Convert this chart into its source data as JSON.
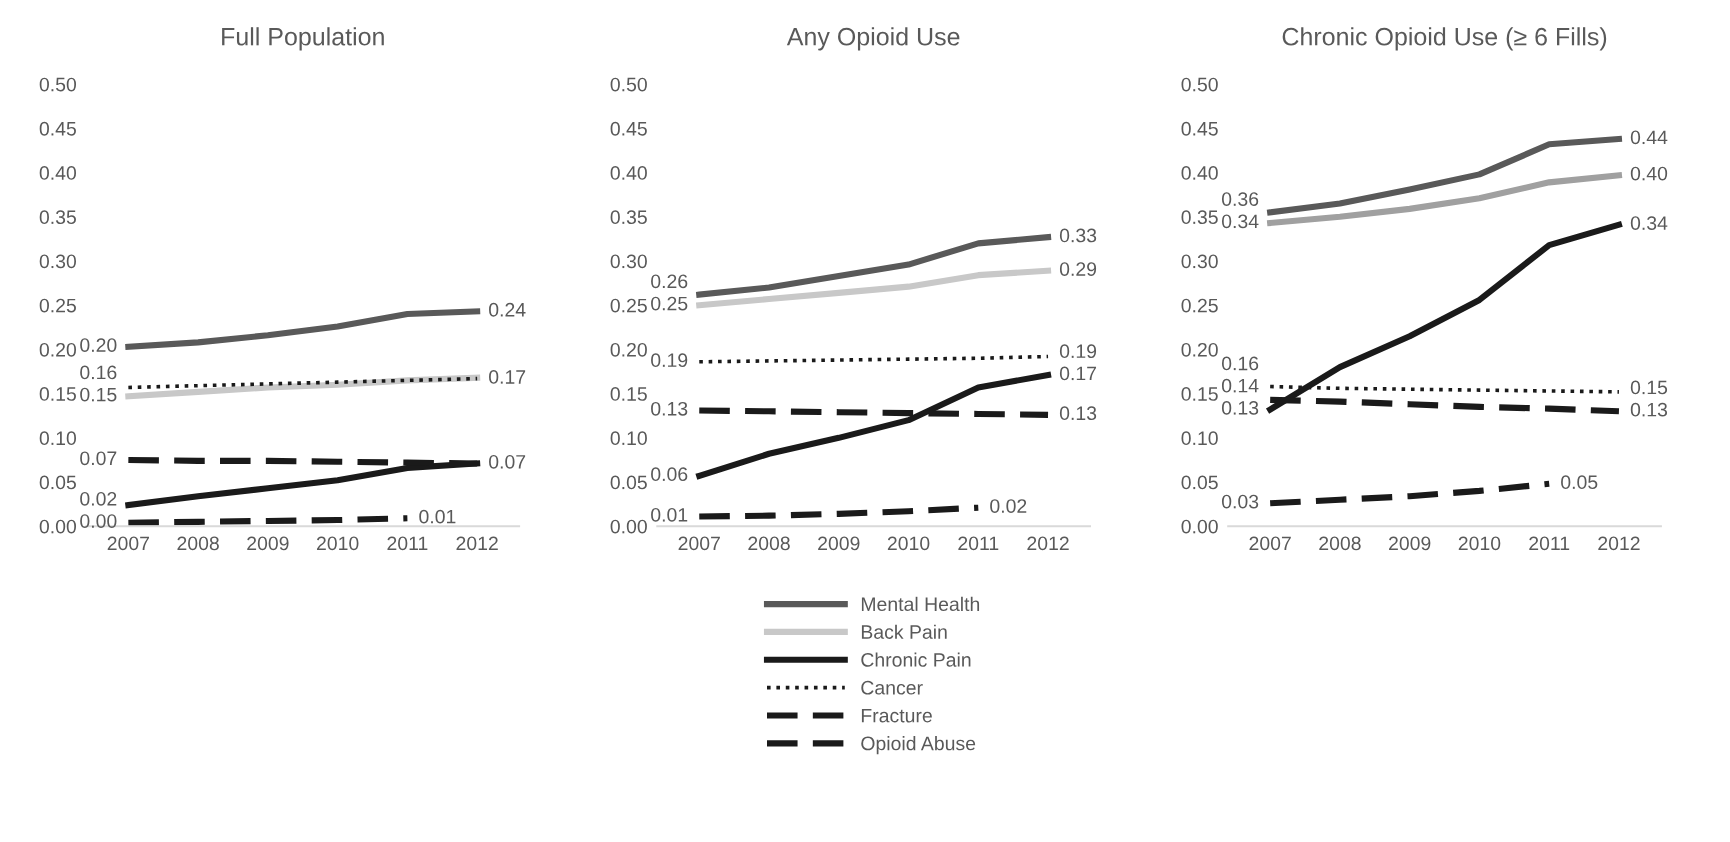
{
  "chart_data": [
    {
      "type": "line",
      "title": "Full Population",
      "categories": [
        "2007",
        "2008",
        "2009",
        "2010",
        "2011",
        "2012"
      ],
      "ylim": [
        0,
        0.5
      ],
      "yticks": [
        {
          "value": 0,
          "label": "0.00"
        },
        {
          "value": 0.05,
          "label": "0.05"
        },
        {
          "value": 0.1,
          "label": "0.10"
        },
        {
          "value": 0.15,
          "label": "0.15"
        },
        {
          "value": 0.2,
          "label": "0.20"
        },
        {
          "value": 0.25,
          "label": "0.25"
        },
        {
          "value": 0.3,
          "label": "0.30"
        },
        {
          "value": 0.35,
          "label": "0.35"
        },
        {
          "value": 0.4,
          "label": "0.40"
        },
        {
          "value": 0.45,
          "label": "0.45"
        },
        {
          "value": 0.5,
          "label": "0.50"
        }
      ],
      "grid": false,
      "legend": false,
      "marker": "none",
      "series": [
        {
          "color": "#595959",
          "line_style": "solid",
          "values": [
            0.203,
            0.208,
            0.216,
            0.226,
            0.24,
            0.243
          ],
          "value_labels": [
            "0.20",
            null,
            null,
            null,
            null,
            "0.24"
          ]
        },
        {
          "color": "#c8c8c8",
          "line_style": "solid",
          "values": [
            0.147,
            0.152,
            0.157,
            0.16,
            0.165,
            0.168
          ],
          "value_labels": [
            "0.15",
            null,
            null,
            null,
            null,
            null
          ]
        },
        {
          "color": "#1a1a1a",
          "line_style": "solid",
          "values": [
            0.024,
            0.034,
            0.043,
            0.052,
            0.066,
            0.071
          ],
          "value_labels": [
            "0.02",
            null,
            null,
            null,
            null,
            "0.07"
          ]
        },
        {
          "color": "#1a1a1a",
          "line_style": "dotted",
          "values": [
            0.157,
            0.159,
            0.161,
            0.163,
            0.165,
            0.167
          ],
          "value_labels": [
            "0.16",
            null,
            null,
            null,
            null,
            "0.17"
          ]
        },
        {
          "color": "#1a1a1a",
          "line_style": "dashed",
          "values": [
            0.075,
            0.074,
            0.074,
            0.073,
            0.072,
            0.071
          ],
          "value_labels": [
            "0.07",
            null,
            null,
            null,
            null,
            null
          ]
        },
        {
          "color": "#1a1a1a",
          "line_style": "dashed",
          "values": [
            0.004,
            0.005,
            0.006,
            0.007,
            0.009,
            null
          ],
          "value_labels": [
            "0.00",
            null,
            null,
            null,
            "0.01",
            null
          ]
        }
      ]
    },
    {
      "type": "line",
      "title": "Any Opioid Use",
      "categories": [
        "2007",
        "2008",
        "2009",
        "2010",
        "2011",
        "2012"
      ],
      "ylim": [
        0,
        0.5
      ],
      "yticks": [
        {
          "value": 0,
          "label": "0.00"
        },
        {
          "value": 0.05,
          "label": "0.05"
        },
        {
          "value": 0.1,
          "label": "0.10"
        },
        {
          "value": 0.15,
          "label": "0.15"
        },
        {
          "value": 0.2,
          "label": "0.20"
        },
        {
          "value": 0.25,
          "label": "0.25"
        },
        {
          "value": 0.3,
          "label": "0.30"
        },
        {
          "value": 0.35,
          "label": "0.35"
        },
        {
          "value": 0.4,
          "label": "0.40"
        },
        {
          "value": 0.45,
          "label": "0.45"
        },
        {
          "value": 0.5,
          "label": "0.50"
        }
      ],
      "grid": false,
      "legend": "bottom",
      "marker": "none",
      "series": [
        {
          "name": "Mental Health",
          "color": "#595959",
          "line_style": "solid",
          "values": [
            0.262,
            0.27,
            0.283,
            0.296,
            0.32,
            0.327
          ],
          "value_labels": [
            "0.26",
            null,
            null,
            null,
            null,
            "0.33"
          ]
        },
        {
          "name": "Back Pain",
          "color": "#c8c8c8",
          "line_style": "solid",
          "values": [
            0.25,
            0.257,
            0.264,
            0.271,
            0.284,
            0.289
          ],
          "value_labels": [
            "0.25",
            null,
            null,
            null,
            null,
            "0.29"
          ]
        },
        {
          "name": "Chronic Pain",
          "color": "#1a1a1a",
          "line_style": "solid",
          "values": [
            0.057,
            0.082,
            0.1,
            0.12,
            0.157,
            0.171
          ],
          "value_labels": [
            "0.06",
            null,
            null,
            null,
            null,
            "0.17"
          ]
        },
        {
          "name": "Cancer",
          "color": "#1a1a1a",
          "line_style": "dotted",
          "values": [
            0.186,
            0.187,
            0.188,
            0.189,
            0.19,
            0.192
          ],
          "value_labels": [
            "0.19",
            null,
            null,
            null,
            null,
            "0.19"
          ]
        },
        {
          "name": "Fracture",
          "color": "#1a1a1a",
          "line_style": "dashed",
          "values": [
            0.131,
            0.13,
            0.129,
            0.128,
            0.127,
            0.126
          ],
          "value_labels": [
            "0.13",
            null,
            null,
            null,
            null,
            "0.13"
          ]
        },
        {
          "name": "Opioid Abuse",
          "color": "#1a1a1a",
          "line_style": "dashed",
          "values": [
            0.011,
            0.012,
            0.014,
            0.017,
            0.021,
            null
          ],
          "value_labels": [
            "0.01",
            null,
            null,
            null,
            "0.02",
            null
          ]
        }
      ]
    },
    {
      "type": "line",
      "title": "Chronic Opioid Use (≥ 6 Fills)",
      "categories": [
        "2007",
        "2008",
        "2009",
        "2010",
        "2011",
        "2012"
      ],
      "ylim": [
        0,
        0.5
      ],
      "yticks": [
        {
          "value": 0,
          "label": "0.00"
        },
        {
          "value": 0.05,
          "label": "0.05"
        },
        {
          "value": 0.1,
          "label": "0.10"
        },
        {
          "value": 0.15,
          "label": "0.15"
        },
        {
          "value": 0.2,
          "label": "0.20"
        },
        {
          "value": 0.25,
          "label": "0.25"
        },
        {
          "value": 0.3,
          "label": "0.30"
        },
        {
          "value": 0.35,
          "label": "0.35"
        },
        {
          "value": 0.4,
          "label": "0.40"
        },
        {
          "value": 0.45,
          "label": "0.45"
        },
        {
          "value": 0.5,
          "label": "0.50"
        }
      ],
      "grid": false,
      "legend": false,
      "marker": "none",
      "series": [
        {
          "color": "#595959",
          "line_style": "solid",
          "values": [
            0.355,
            0.365,
            0.381,
            0.398,
            0.432,
            0.438
          ],
          "value_labels": [
            "0.36",
            null,
            null,
            null,
            null,
            "0.44"
          ]
        },
        {
          "color": "#a0a0a0",
          "line_style": "solid",
          "values": [
            0.343,
            0.35,
            0.359,
            0.371,
            0.389,
            0.397
          ],
          "value_labels": [
            "0.34",
            null,
            null,
            null,
            null,
            "0.40"
          ]
        },
        {
          "color": "#1a1a1a",
          "line_style": "solid",
          "values": [
            0.132,
            0.18,
            0.215,
            0.256,
            0.318,
            0.341
          ],
          "value_labels": [
            "0.13",
            null,
            null,
            null,
            null,
            "0.34"
          ]
        },
        {
          "color": "#1a1a1a",
          "line_style": "dotted",
          "values": [
            0.158,
            0.156,
            0.155,
            0.154,
            0.153,
            0.152
          ],
          "value_labels": [
            "0.16",
            null,
            null,
            null,
            null,
            "0.15"
          ]
        },
        {
          "color": "#1a1a1a",
          "line_style": "dashed",
          "values": [
            0.143,
            0.141,
            0.138,
            0.135,
            0.133,
            0.13
          ],
          "value_labels": [
            "0.14",
            null,
            null,
            null,
            null,
            "0.13"
          ]
        },
        {
          "color": "#1a1a1a",
          "line_style": "dashed",
          "values": [
            0.026,
            0.03,
            0.034,
            0.04,
            0.048,
            null
          ],
          "value_labels": [
            "0.03",
            null,
            null,
            null,
            "0.05",
            null
          ]
        }
      ]
    }
  ]
}
